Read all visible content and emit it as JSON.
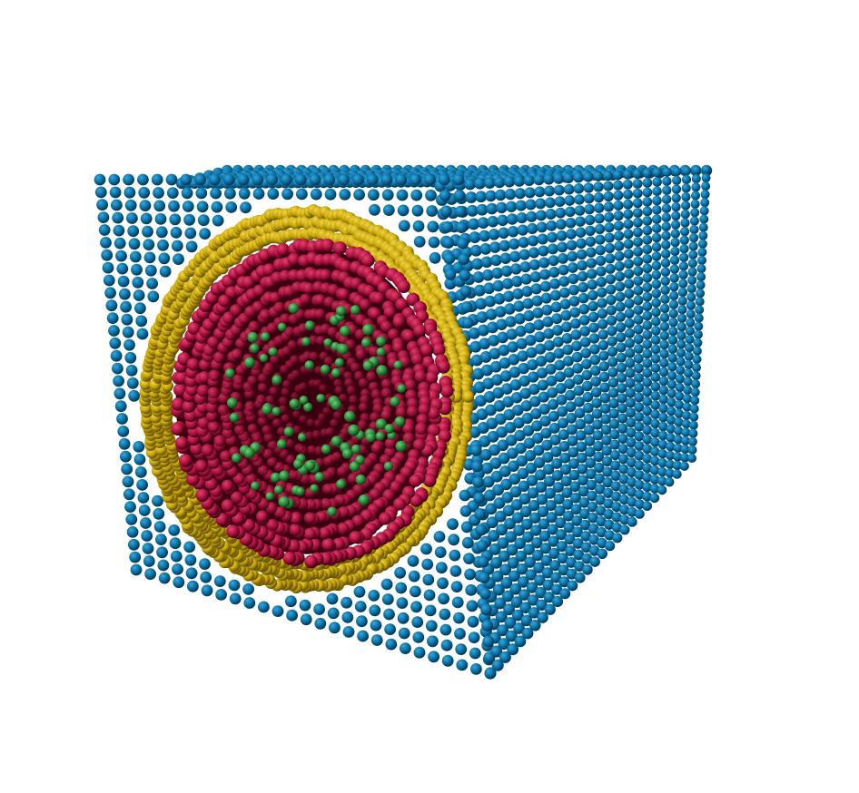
{
  "scene": {
    "subject": "atomistic-nanowire-cross-section",
    "background_color": "#ffffff",
    "shells": [
      {
        "name": "outer-matrix",
        "color": "#0b6fa3",
        "highlight": "#38a7db",
        "shadow": "#04324d"
      },
      {
        "name": "interface-shell",
        "color": "#c9a70a",
        "highlight": "#f2d64a",
        "shadow": "#5e4b00"
      },
      {
        "name": "core",
        "color": "#b0123f",
        "highlight": "#e0476f",
        "shadow": "#3a0012"
      },
      {
        "name": "dopant",
        "color": "#2e8a3c",
        "highlight": "#6fd07c",
        "shadow": "#0b3a13"
      }
    ]
  }
}
